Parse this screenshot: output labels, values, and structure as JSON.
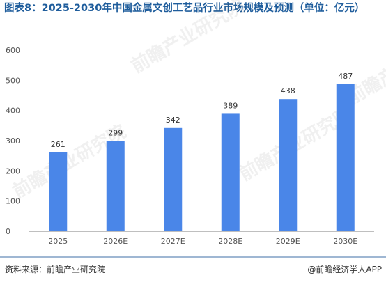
{
  "title": "图表8：2025-2030年中国金属文创工艺品行业市场规模及预测（单位：亿元）",
  "footer": {
    "source": "资料来源：前瞻产业研究院",
    "credit": "@前瞻经济学人APP"
  },
  "watermark": "前瞻产业研究院",
  "colors": {
    "bar": "#4a86e8",
    "title": "#1f5d9c",
    "grid": "#d9d9d9"
  },
  "chart_data": {
    "type": "bar",
    "categories": [
      "2025",
      "2026E",
      "2027E",
      "2028E",
      "2029E",
      "2030E"
    ],
    "values": [
      261,
      299,
      342,
      389,
      438,
      487
    ],
    "title": "图表8：2025-2030年中国金属文创工艺品行业市场规模及预测（单位：亿元）",
    "xlabel": "",
    "ylabel": "",
    "ylim": [
      0,
      600
    ],
    "yticks": [
      0,
      100,
      200,
      300,
      400,
      500,
      600
    ],
    "grid": false,
    "data_labels": true
  }
}
